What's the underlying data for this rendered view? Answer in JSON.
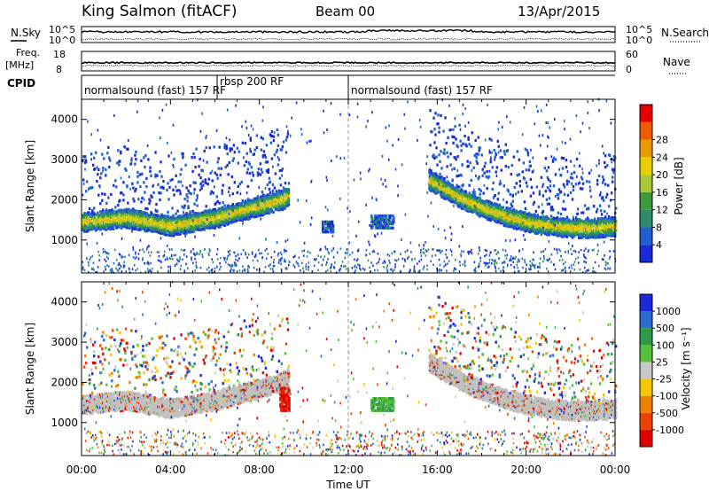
{
  "header": {
    "station": "King Salmon (fitACF)",
    "beam": "Beam 00",
    "date": "13/Apr/2015"
  },
  "panel_labels": {
    "nsky": "N.Sky",
    "nsearch": "N.Search",
    "freq": "Freq.",
    "freq_unit": "[MHz]",
    "nave": "Nave",
    "cpid": "CPID"
  },
  "aux_ticks": {
    "noise_left": [
      "10^5",
      "10^0"
    ],
    "noise_right": [
      "10^5",
      "10^0"
    ],
    "freq_left": [
      "18",
      "8"
    ],
    "freq_right": [
      "60",
      "0"
    ]
  },
  "cpid_segments": [
    {
      "label": "normalsound (fast) 157 RF",
      "start": 0.0,
      "end": 6.1
    },
    {
      "label": "rbsp 200 RF",
      "start": 6.1,
      "end": 12.0
    },
    {
      "label": "normalsound (fast) 157 RF",
      "start": 12.0,
      "end": 24.0
    }
  ],
  "x_axis": {
    "label": "Time UT",
    "ticks": [
      "00:00",
      "04:00",
      "08:00",
      "12:00",
      "16:00",
      "20:00",
      "00:00"
    ],
    "range_hours": [
      0,
      24
    ]
  },
  "chart_data": [
    {
      "type": "heatmap",
      "name": "power",
      "ylabel": "Slant Range [km]",
      "yticks": [
        "1000",
        "2000",
        "3000",
        "4000"
      ],
      "ylim": [
        180,
        4500
      ],
      "colorbar": {
        "label": "Power [dB]",
        "ticks": [
          "4",
          "8",
          "12",
          "16",
          "20",
          "24",
          "28"
        ],
        "colors": [
          "#1a2ad6",
          "#1f5fd0",
          "#2f8b70",
          "#3c9c3c",
          "#a8c83a",
          "#e6d000",
          "#e89a00",
          "#ee5a00",
          "#e40000"
        ]
      },
      "features": [
        {
          "kind": "band",
          "t": [
            0,
            1,
            2,
            3,
            4,
            5,
            6,
            7,
            8,
            9,
            9.3
          ],
          "r": [
            1450,
            1500,
            1550,
            1450,
            1350,
            1450,
            1550,
            1700,
            1850,
            2000,
            2100
          ],
          "intensity": 0.75
        },
        {
          "kind": "band",
          "t": [
            15.6,
            17,
            18,
            19,
            20,
            21,
            22,
            23,
            24
          ],
          "r": [
            2500,
            2050,
            1800,
            1600,
            1450,
            1350,
            1300,
            1300,
            1350
          ],
          "intensity": 0.7
        },
        {
          "kind": "blob",
          "t": [
            10.8,
            11.3
          ],
          "r": [
            1200,
            1500
          ],
          "intensity": 0.3
        },
        {
          "kind": "blob",
          "t": [
            13.0,
            14.0
          ],
          "r": [
            1300,
            1650
          ],
          "intensity": 0.35
        }
      ]
    },
    {
      "type": "heatmap",
      "name": "velocity",
      "ylabel": "Slant Range [km]",
      "yticks": [
        "1000",
        "2000",
        "3000",
        "4000"
      ],
      "ylim": [
        180,
        4500
      ],
      "colorbar": {
        "label": "Velocity [m s⁻¹]",
        "ticks": [
          "1000",
          "500",
          "100",
          "25",
          "-25",
          "-100",
          "-500",
          "-1000"
        ],
        "colors": [
          "#1a2ad6",
          "#2a6cd0",
          "#2f9a48",
          "#55c03a",
          "#c8c8c8",
          "#f5c800",
          "#f08000",
          "#ee4000",
          "#e00000"
        ]
      },
      "features": [
        {
          "kind": "band",
          "t": [
            0,
            1,
            2,
            3,
            4,
            5,
            6,
            7,
            8,
            9,
            9.3
          ],
          "r": [
            1450,
            1500,
            1550,
            1450,
            1350,
            1450,
            1550,
            1700,
            1850,
            2000,
            2100
          ],
          "value": "ground"
        },
        {
          "kind": "band",
          "t": [
            15.6,
            17,
            18,
            19,
            20,
            21,
            22,
            23,
            24
          ],
          "r": [
            2500,
            2050,
            1800,
            1600,
            1450,
            1350,
            1300,
            1300,
            1350
          ],
          "value": "ground"
        },
        {
          "kind": "blob",
          "t": [
            8.9,
            9.3
          ],
          "r": [
            1300,
            1900
          ],
          "value": "-1000"
        },
        {
          "kind": "blob",
          "t": [
            13.0,
            14.0
          ],
          "r": [
            1300,
            1650
          ],
          "value": "100"
        }
      ]
    }
  ]
}
